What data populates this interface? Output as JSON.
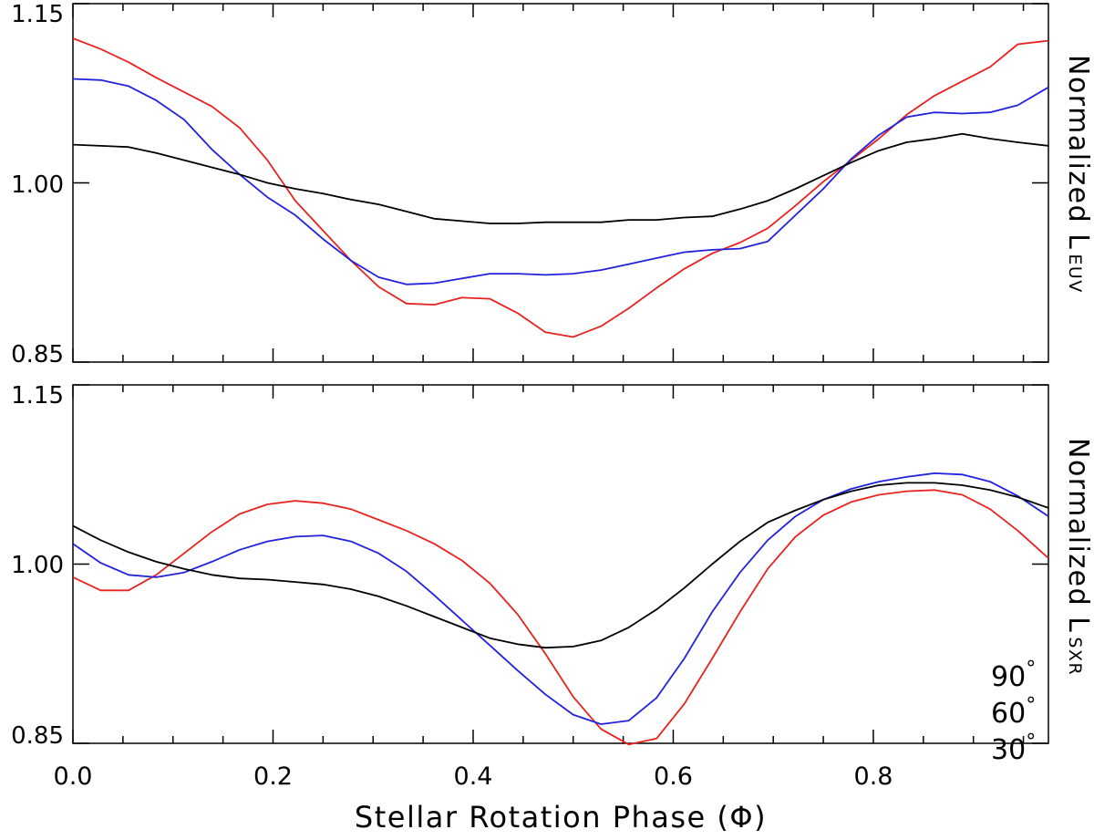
{
  "chart_data": {
    "type": "line",
    "xlabel": "Stellar Rotation Phase (Φ)",
    "xlim": [
      0.0,
      0.975
    ],
    "xticks": [
      0.0,
      0.2,
      0.4,
      0.6,
      0.8
    ],
    "xtick_labels": [
      "0.0",
      "0.2",
      "0.4",
      "0.6",
      "0.8"
    ],
    "x": [
      0.0,
      0.0278,
      0.0556,
      0.0833,
      0.1111,
      0.1389,
      0.1667,
      0.1944,
      0.2222,
      0.25,
      0.2778,
      0.3056,
      0.3333,
      0.3611,
      0.3889,
      0.4167,
      0.4444,
      0.4722,
      0.5,
      0.5278,
      0.5556,
      0.5833,
      0.6111,
      0.6389,
      0.6667,
      0.6944,
      0.7222,
      0.75,
      0.7778,
      0.8056,
      0.8333,
      0.8611,
      0.8889,
      0.9167,
      0.9444,
      0.975
    ],
    "legend": [
      {
        "label": "90",
        "unit": "°",
        "color": "#e8231f"
      },
      {
        "label": "60",
        "unit": "°",
        "color": "#2222dd"
      },
      {
        "label": "30",
        "unit": "°",
        "color": "#000000"
      }
    ],
    "panels": [
      {
        "name": "top",
        "ylabel": "Normalized L",
        "ylabel_sub": "EUV",
        "ylim": [
          0.85,
          1.15
        ],
        "yticks": [
          0.85,
          1.0,
          1.15
        ],
        "ytick_labels": [
          "0.85",
          "1.00",
          "1.15"
        ],
        "series": [
          {
            "name": "90°",
            "color": "#e8231f",
            "values": [
              1.121,
              1.112,
              1.101,
              1.088,
              1.076,
              1.064,
              1.046,
              1.019,
              0.985,
              0.96,
              0.935,
              0.913,
              0.899,
              0.898,
              0.904,
              0.903,
              0.891,
              0.875,
              0.871,
              0.88,
              0.895,
              0.912,
              0.928,
              0.941,
              0.95,
              0.962,
              0.981,
              1.001,
              1.019,
              1.037,
              1.057,
              1.073,
              1.085,
              1.097,
              1.116,
              1.119
            ]
          },
          {
            "name": "60°",
            "color": "#2222dd",
            "values": [
              1.087,
              1.086,
              1.081,
              1.069,
              1.053,
              1.028,
              1.007,
              0.988,
              0.973,
              0.953,
              0.935,
              0.921,
              0.915,
              0.916,
              0.92,
              0.924,
              0.924,
              0.923,
              0.924,
              0.927,
              0.932,
              0.937,
              0.942,
              0.944,
              0.945,
              0.951,
              0.973,
              0.995,
              1.02,
              1.04,
              1.055,
              1.059,
              1.058,
              1.059,
              1.065,
              1.08
            ]
          },
          {
            "name": "30°",
            "color": "#000000",
            "values": [
              1.032,
              1.031,
              1.03,
              1.025,
              1.019,
              1.013,
              1.007,
              1.0,
              0.995,
              0.991,
              0.986,
              0.982,
              0.976,
              0.97,
              0.968,
              0.966,
              0.966,
              0.967,
              0.967,
              0.967,
              0.969,
              0.969,
              0.971,
              0.972,
              0.978,
              0.985,
              0.995,
              1.006,
              1.017,
              1.027,
              1.034,
              1.037,
              1.041,
              1.037,
              1.034,
              1.031
            ]
          }
        ]
      },
      {
        "name": "bottom",
        "ylabel": "Normalized L",
        "ylabel_sub": "SXR",
        "ylim": [
          0.85,
          1.15
        ],
        "yticks": [
          0.85,
          1.0,
          1.15
        ],
        "ytick_labels": [
          "0.85",
          "1.00",
          "1.15"
        ],
        "series": [
          {
            "name": "90°",
            "color": "#e8231f",
            "values": [
              0.989,
              0.978,
              0.978,
              0.991,
              1.009,
              1.027,
              1.042,
              1.05,
              1.053,
              1.051,
              1.046,
              1.037,
              1.028,
              1.017,
              1.003,
              0.984,
              0.958,
              0.925,
              0.889,
              0.862,
              0.849,
              0.854,
              0.883,
              0.921,
              0.96,
              0.996,
              1.023,
              1.041,
              1.052,
              1.058,
              1.061,
              1.062,
              1.058,
              1.046,
              1.028,
              1.005
            ]
          },
          {
            "name": "60°",
            "color": "#2222dd",
            "values": [
              1.017,
              1.001,
              0.991,
              0.989,
              0.993,
              1.002,
              1.012,
              1.019,
              1.023,
              1.024,
              1.019,
              1.009,
              0.994,
              0.974,
              0.953,
              0.932,
              0.911,
              0.891,
              0.874,
              0.866,
              0.869,
              0.888,
              0.921,
              0.96,
              0.993,
              1.02,
              1.04,
              1.054,
              1.063,
              1.069,
              1.073,
              1.076,
              1.075,
              1.069,
              1.057,
              1.04
            ]
          },
          {
            "name": "30°",
            "color": "#000000",
            "values": [
              1.032,
              1.02,
              1.01,
              1.002,
              0.996,
              0.991,
              0.988,
              0.987,
              0.985,
              0.983,
              0.979,
              0.973,
              0.965,
              0.956,
              0.947,
              0.938,
              0.933,
              0.93,
              0.931,
              0.936,
              0.947,
              0.962,
              0.98,
              1.0,
              1.019,
              1.035,
              1.045,
              1.054,
              1.061,
              1.066,
              1.068,
              1.068,
              1.066,
              1.062,
              1.056,
              1.047
            ]
          }
        ]
      }
    ]
  }
}
